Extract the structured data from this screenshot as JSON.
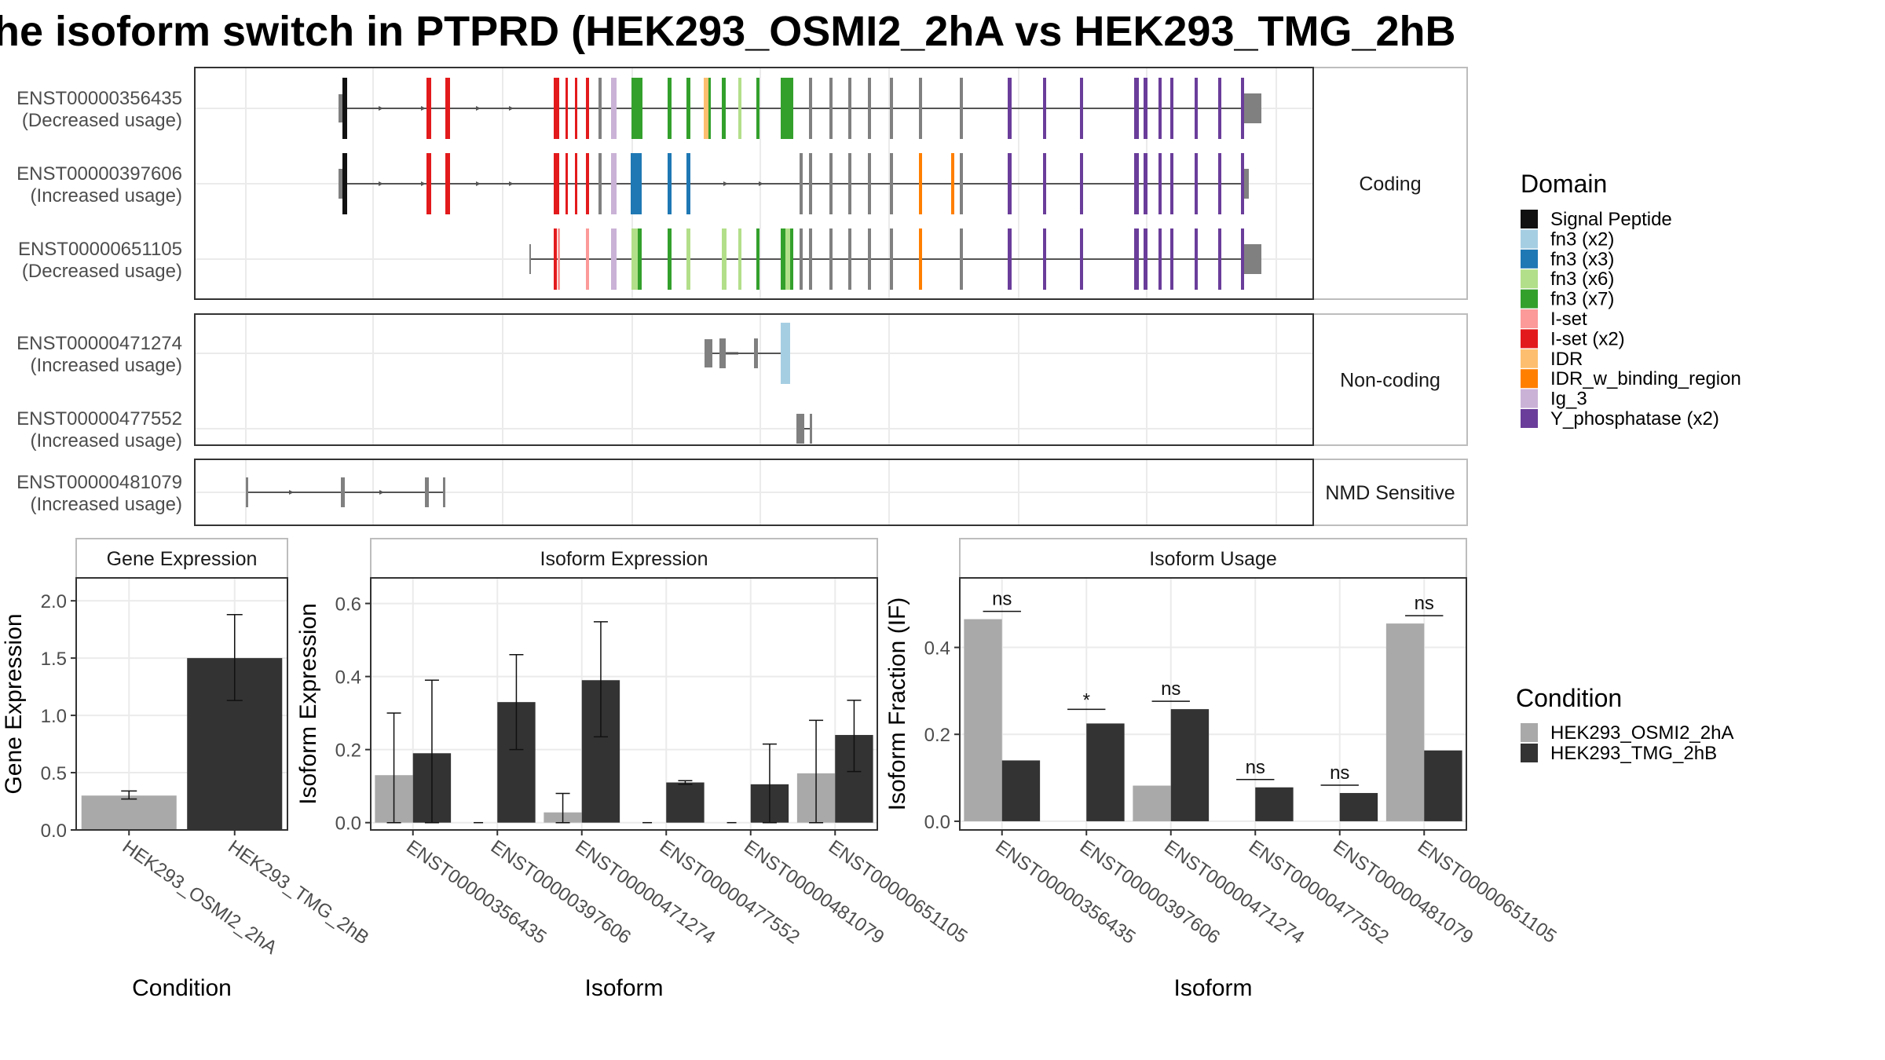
{
  "title": "he isoform switch in PTPRD (HEK293_OSMI2_2hA vs HEK293_TMG_2hB",
  "colors": {
    "cond_a": "#a9a9a9",
    "cond_b": "#333333",
    "panel_border": "#333333",
    "strip_fill": "#ffffff",
    "grid": "#ebebeb",
    "axis_text": "#4d4d4d",
    "exon_default": "#808080"
  },
  "structure": {
    "categories": [
      {
        "label": "Coding",
        "isoforms": [
          {
            "id": "ENST00000356435",
            "usage": "(Decreased usage)"
          },
          {
            "id": "ENST00000397606",
            "usage": "(Increased usage)"
          },
          {
            "id": "ENST00000651105",
            "usage": "(Decreased usage)"
          }
        ]
      },
      {
        "label": "Non-coding",
        "isoforms": [
          {
            "id": "ENST00000471274",
            "usage": "(Increased usage)"
          },
          {
            "id": "ENST00000477552",
            "usage": "(Increased usage)"
          }
        ]
      },
      {
        "label": "NMD Sensitive",
        "isoforms": [
          {
            "id": "ENST00000481079",
            "usage": "(Increased usage)"
          }
        ]
      }
    ],
    "domain_legend": {
      "title": "Domain",
      "items": [
        {
          "label": "Signal Peptide",
          "color": "#111111"
        },
        {
          "label": "fn3 (x2)",
          "color": "#a6cee3"
        },
        {
          "label": "fn3 (x3)",
          "color": "#1f78b4"
        },
        {
          "label": "fn3 (x6)",
          "color": "#b2df8a"
        },
        {
          "label": "fn3 (x7)",
          "color": "#33a02c"
        },
        {
          "label": "I-set",
          "color": "#fb9a99"
        },
        {
          "label": "I-set (x2)",
          "color": "#e31a1c"
        },
        {
          "label": "IDR",
          "color": "#fdbf6f"
        },
        {
          "label": "IDR_w_binding_region",
          "color": "#ff7f00"
        },
        {
          "label": "Ig_3",
          "color": "#cab2d6"
        },
        {
          "label": "Y_phosphatase (x2)",
          "color": "#6a3d9a"
        }
      ]
    }
  },
  "chart_data": [
    {
      "type": "bar",
      "title": "Gene Expression",
      "xlabel": "Condition",
      "ylabel": "Gene Expression",
      "categories": [
        "HEK293_OSMI2_2hA",
        "HEK293_TMG_2hB"
      ],
      "values": [
        0.3,
        1.5
      ],
      "error_bars": [
        [
          0.27,
          0.34
        ],
        [
          1.13,
          1.88
        ]
      ],
      "ylim": [
        0,
        2.2
      ],
      "yticks": [
        "0.0",
        "0.5",
        "1.0",
        "1.5",
        "2.0"
      ]
    },
    {
      "type": "bar",
      "title": "Isoform Expression",
      "xlabel": "Isoform",
      "ylabel": "Isoform Expression",
      "categories": [
        "ENST00000356435",
        "ENST00000397606",
        "ENST00000471274",
        "ENST00000477552",
        "ENST00000481079",
        "ENST00000651105"
      ],
      "series": [
        {
          "name": "HEK293_OSMI2_2hA",
          "values": [
            0.13,
            0.0,
            0.028,
            0.0,
            0.0,
            0.135
          ],
          "error": [
            [
              0.0,
              0.3
            ],
            [
              0.0,
              0.0
            ],
            [
              0.0,
              0.08
            ],
            [
              0.0,
              0.0
            ],
            [
              0.0,
              0.0
            ],
            [
              0.0,
              0.28
            ]
          ]
        },
        {
          "name": "HEK293_TMG_2hB",
          "values": [
            0.19,
            0.33,
            0.39,
            0.11,
            0.105,
            0.24
          ],
          "error": [
            [
              0.0,
              0.39
            ],
            [
              0.2,
              0.46
            ],
            [
              0.235,
              0.55
            ],
            [
              0.105,
              0.115
            ],
            [
              0.0,
              0.215
            ],
            [
              0.14,
              0.335
            ]
          ]
        }
      ],
      "ylim": [
        -0.02,
        0.67
      ],
      "yticks": [
        "0.0",
        "0.2",
        "0.4",
        "0.6"
      ]
    },
    {
      "type": "bar",
      "title": "Isoform Usage",
      "xlabel": "Isoform",
      "ylabel": "Isoform Fraction (IF)",
      "categories": [
        "ENST00000356435",
        "ENST00000397606",
        "ENST00000471274",
        "ENST00000477552",
        "ENST00000481079",
        "ENST00000651105"
      ],
      "series": [
        {
          "name": "HEK293_OSMI2_2hA",
          "values": [
            0.465,
            0.0,
            0.082,
            0.0,
            0.0,
            0.455
          ]
        },
        {
          "name": "HEK293_TMG_2hB",
          "values": [
            0.14,
            0.225,
            0.258,
            0.078,
            0.065,
            0.163
          ]
        }
      ],
      "significance": [
        "ns",
        "*",
        "ns",
        "ns",
        "ns",
        "ns"
      ],
      "ylim": [
        -0.02,
        0.56
      ],
      "yticks": [
        "0.0",
        "0.2",
        "0.4"
      ]
    }
  ],
  "condition_legend": {
    "title": "Condition",
    "items": [
      "HEK293_OSMI2_2hA",
      "HEK293_TMG_2hB"
    ]
  }
}
